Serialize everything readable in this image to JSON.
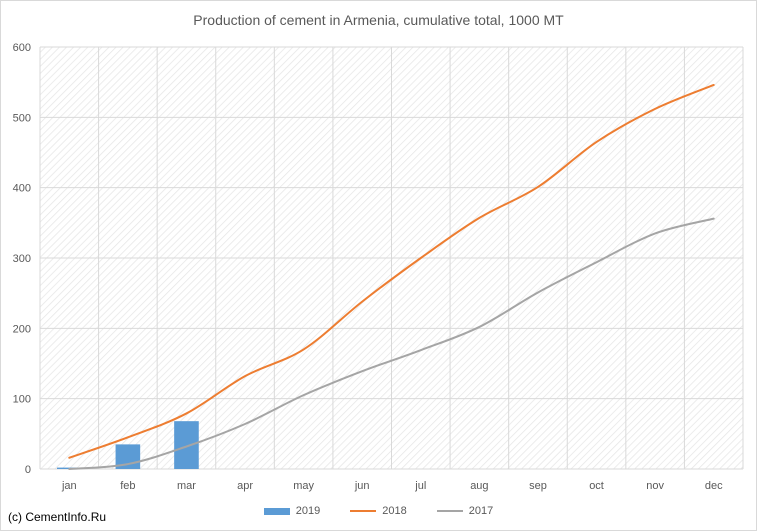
{
  "chart_data": {
    "type": "bar",
    "title": "Production of cement in Armenia, cumulative total, 1000 MT",
    "xlabel": "",
    "ylabel": "",
    "categories": [
      "jan",
      "feb",
      "mar",
      "apr",
      "may",
      "jun",
      "jul",
      "aug",
      "sep",
      "oct",
      "nov",
      "dec"
    ],
    "ylim": [
      0,
      600
    ],
    "yticks": [
      0,
      100,
      200,
      300,
      400,
      500,
      600
    ],
    "grid": true,
    "legend_position": "bottom",
    "series": [
      {
        "name": "2019",
        "type": "bar",
        "color": "#5b9bd5",
        "values": [
          2,
          35,
          68,
          null,
          null,
          null,
          null,
          null,
          null,
          null,
          null,
          null
        ]
      },
      {
        "name": "2018",
        "type": "line",
        "color": "#ed7d31",
        "values": [
          16,
          45,
          79,
          132,
          170,
          238,
          300,
          357,
          401,
          465,
          512,
          546
        ]
      },
      {
        "name": "2017",
        "type": "line",
        "color": "#a5a5a5",
        "values": [
          0,
          7,
          32,
          64,
          105,
          139,
          169,
          202,
          251,
          294,
          335,
          356
        ]
      }
    ]
  },
  "credit": "(c) CementInfo.Ru"
}
